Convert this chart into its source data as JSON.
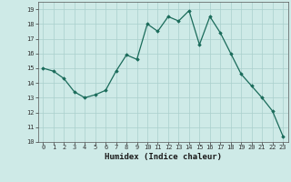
{
  "x": [
    0,
    1,
    2,
    3,
    4,
    5,
    6,
    7,
    8,
    9,
    10,
    11,
    12,
    13,
    14,
    15,
    16,
    17,
    18,
    19,
    20,
    21,
    22,
    23
  ],
  "y": [
    15.0,
    14.8,
    14.3,
    13.4,
    13.0,
    13.2,
    13.5,
    14.8,
    15.9,
    15.6,
    18.0,
    17.5,
    18.5,
    18.2,
    18.9,
    16.6,
    18.5,
    17.4,
    16.0,
    14.6,
    13.8,
    13.0,
    12.1,
    10.4
  ],
  "xlim": [
    -0.5,
    23.5
  ],
  "ylim": [
    10,
    19.5
  ],
  "yticks": [
    10,
    11,
    12,
    13,
    14,
    15,
    16,
    17,
    18,
    19
  ],
  "xticks": [
    0,
    1,
    2,
    3,
    4,
    5,
    6,
    7,
    8,
    9,
    10,
    11,
    12,
    13,
    14,
    15,
    16,
    17,
    18,
    19,
    20,
    21,
    22,
    23
  ],
  "xlabel": "Humidex (Indice chaleur)",
  "line_color": "#1a6b5a",
  "marker": "D",
  "marker_size": 1.8,
  "bg_color": "#ceeae7",
  "grid_color": "#aacfcc",
  "tick_fontsize": 5.0,
  "xlabel_fontsize": 6.5
}
